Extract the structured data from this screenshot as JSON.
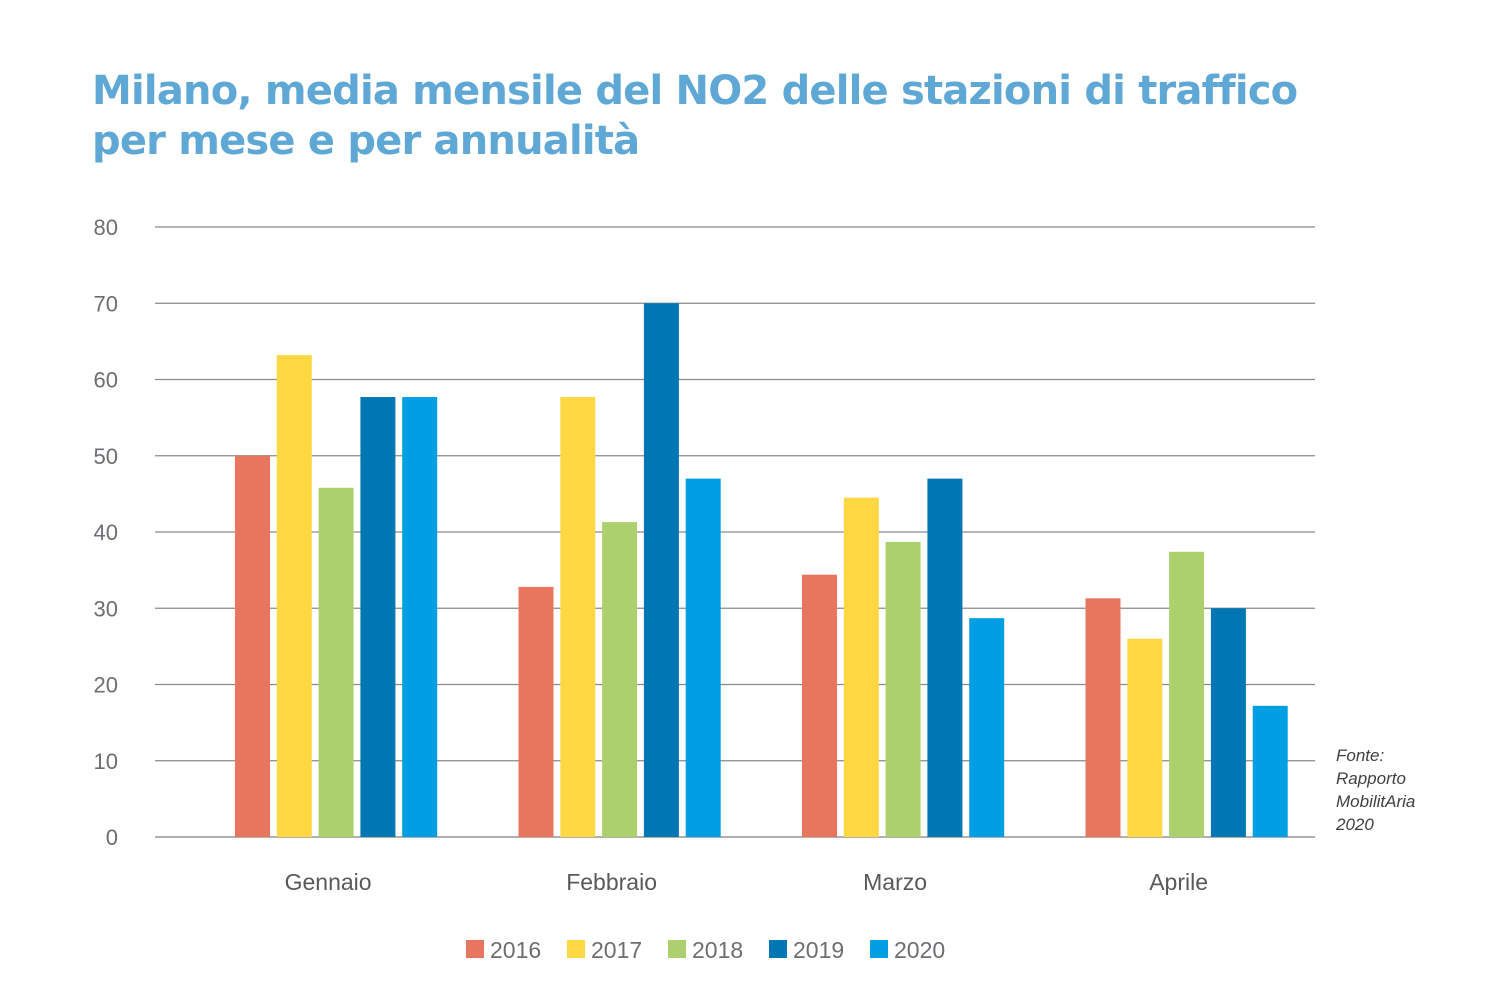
{
  "title_lines": [
    "Milano, media mensile del NO2 delle stazioni di traffico",
    "per mese e per annualità"
  ],
  "source_lines": [
    "Fonte:",
    "Rapporto",
    "MobilitAria",
    "2020"
  ],
  "chart_data": {
    "type": "bar",
    "title": "Milano, media mensile del NO2 delle stazioni di traffico per mese e per annualità",
    "xlabel": "",
    "ylabel": "",
    "ylim": [
      0,
      80
    ],
    "yticks": [
      0,
      10,
      20,
      30,
      40,
      50,
      60,
      70,
      80
    ],
    "grid": true,
    "legend_position": "bottom",
    "categories": [
      "Gennaio",
      "Febbraio",
      "Marzo",
      "Aprile"
    ],
    "series": [
      {
        "name": "2016",
        "color": "#e8765f",
        "values": [
          50,
          32.8,
          34.4,
          31.3
        ]
      },
      {
        "name": "2017",
        "color": "#fdd843",
        "values": [
          63.2,
          57.7,
          44.5,
          26
        ]
      },
      {
        "name": "2018",
        "color": "#add06f",
        "values": [
          45.8,
          41.3,
          38.7,
          37.4
        ]
      },
      {
        "name": "2019",
        "color": "#0077b5",
        "values": [
          57.7,
          70,
          47,
          30
        ]
      },
      {
        "name": "2020",
        "color": "#009fe3",
        "values": [
          57.7,
          47,
          28.7,
          17.2
        ]
      }
    ],
    "annotation": "Fonte: Rapporto MobilitAria 2020"
  }
}
